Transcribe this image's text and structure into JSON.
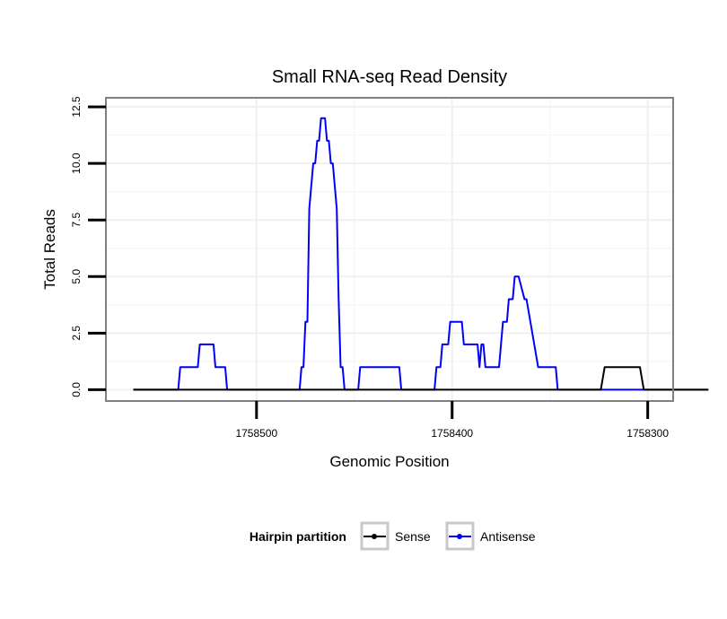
{
  "chart_data": {
    "type": "line",
    "title": "Small RNA-seq Read Density",
    "xlabel": "Genomic Position",
    "ylabel": "Total Reads",
    "x_reversed": true,
    "xlim": [
      1758577,
      1758287
    ],
    "ylim": [
      -0.5,
      12.9
    ],
    "x_ticks": [
      1758500,
      1758400,
      1758300
    ],
    "x_tick_labels": [
      "1758500",
      "1758400",
      "1758300"
    ],
    "y_ticks": [
      0,
      2.5,
      5,
      7.5,
      10,
      12.5
    ],
    "y_tick_labels": [
      "0.0",
      "2.5",
      "5.0",
      "7.5",
      "10.0",
      "12.5"
    ],
    "grid": true,
    "legend": {
      "title": "Hairpin partition",
      "position": "bottom",
      "entries": [
        "Sense",
        "Antisense"
      ]
    },
    "series": [
      {
        "name": "Sense",
        "color": "#000000",
        "x": [
          1758563,
          1758324,
          1758322,
          1758304,
          1758302,
          1758269
        ],
        "y": [
          0,
          0,
          1,
          1,
          0,
          0
        ]
      },
      {
        "name": "Antisense",
        "color": "#0000ff",
        "x": [
          1758563,
          1758540,
          1758539,
          1758530,
          1758529,
          1758522,
          1758521,
          1758516,
          1758515,
          1758507,
          1758506,
          1758478,
          1758477,
          1758476,
          1758475,
          1758474,
          1758473,
          1758472,
          1758471,
          1758470,
          1758469,
          1758468,
          1758467,
          1758466,
          1758465,
          1758464,
          1758463,
          1758462,
          1758461,
          1758460,
          1758459,
          1758458,
          1758457,
          1758456,
          1758455,
          1758448,
          1758447,
          1758446,
          1758445,
          1758427,
          1758426,
          1758409,
          1758408,
          1758406,
          1758405,
          1758402,
          1758401,
          1758395,
          1758394,
          1758388,
          1758387,
          1758386,
          1758385,
          1758384,
          1758383,
          1758377,
          1758376,
          1758375,
          1758374,
          1758372,
          1758371,
          1758369,
          1758368,
          1758367,
          1758366,
          1758363,
          1758362,
          1758356,
          1758355,
          1758348,
          1758347,
          1758346,
          1758345,
          1758344,
          1758343,
          1758333,
          1758332,
          1758269
        ],
        "y": [
          0,
          0,
          1,
          1,
          2,
          2,
          1,
          1,
          0,
          0,
          0,
          0,
          1,
          1,
          3,
          3,
          8,
          9,
          10,
          10,
          11,
          11,
          12,
          12,
          12,
          11,
          11,
          10,
          10,
          9,
          8,
          4,
          1,
          1,
          0,
          0,
          1,
          1,
          1,
          1,
          0,
          0,
          1,
          1,
          2,
          2,
          3,
          3,
          2,
          2,
          2,
          1,
          2,
          2,
          1,
          1,
          1,
          2,
          3,
          3,
          4,
          4,
          5,
          5,
          5,
          4,
          4,
          1,
          1,
          1,
          1,
          0,
          0,
          0,
          0,
          0,
          0,
          0
        ]
      }
    ]
  }
}
